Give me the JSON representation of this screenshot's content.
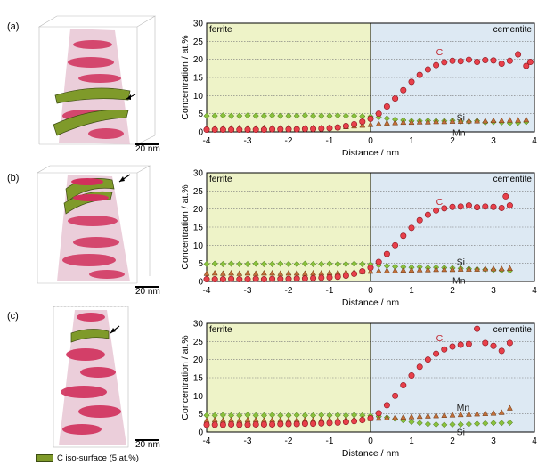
{
  "panels": [
    {
      "label": "(a)",
      "scale": "20 nm"
    },
    {
      "label": "(b)",
      "scale": "20 nm"
    },
    {
      "label": "(c)",
      "scale": "20 nm"
    }
  ],
  "legend": {
    "label": "C iso-surface (5 at.%)",
    "color": "#7f9a2a"
  },
  "colors": {
    "ferrite_bg": "#eef3c8",
    "cementite_bg": "#dde9f3",
    "C": "#e8404a",
    "Si": "#8ac23c",
    "Mn": "#c2703a"
  },
  "chart_data": [
    {
      "type": "scatter",
      "xlabel": "Distance / nm",
      "ylabel": "Concentration / at.%",
      "xlim": [
        -4,
        4
      ],
      "ylim": [
        0,
        30
      ],
      "xticks": [
        -4,
        -3,
        -2,
        -1,
        0,
        1,
        2,
        3,
        4
      ],
      "yticks": [
        0,
        5,
        10,
        15,
        20,
        25,
        30
      ],
      "region_left": "ferrite",
      "region_right": "cementite",
      "series": [
        {
          "name": "C",
          "x": [
            -4.0,
            -3.8,
            -3.6,
            -3.4,
            -3.2,
            -3.0,
            -2.8,
            -2.6,
            -2.4,
            -2.2,
            -2.0,
            -1.8,
            -1.6,
            -1.4,
            -1.2,
            -1.0,
            -0.8,
            -0.6,
            -0.4,
            -0.2,
            0.0,
            0.2,
            0.4,
            0.6,
            0.8,
            1.0,
            1.2,
            1.4,
            1.6,
            1.8,
            2.0,
            2.2,
            2.4,
            2.6,
            2.8,
            3.0,
            3.2,
            3.4,
            3.6,
            3.8,
            3.9
          ],
          "values": [
            0.6,
            0.6,
            0.6,
            0.6,
            0.6,
            0.6,
            0.6,
            0.6,
            0.7,
            0.7,
            0.7,
            0.7,
            0.8,
            0.8,
            0.9,
            1.0,
            1.2,
            1.6,
            2.1,
            2.8,
            3.6,
            5.0,
            7.0,
            9.2,
            11.5,
            13.8,
            15.7,
            17.2,
            18.4,
            19.2,
            19.6,
            19.5,
            19.9,
            19.3,
            19.8,
            19.7,
            18.8,
            19.6,
            21.4,
            18.2,
            19.3
          ],
          "label_at": [
            1.6,
            22
          ]
        },
        {
          "name": "Si",
          "x": [
            -4.0,
            -3.8,
            -3.6,
            -3.4,
            -3.2,
            -3.0,
            -2.8,
            -2.6,
            -2.4,
            -2.2,
            -2.0,
            -1.8,
            -1.6,
            -1.4,
            -1.2,
            -1.0,
            -0.8,
            -0.6,
            -0.4,
            -0.2,
            0.0,
            0.2,
            0.4,
            0.6,
            0.8,
            1.0,
            1.2,
            1.4,
            1.6,
            1.8,
            2.0,
            2.2,
            2.4,
            2.6,
            2.8,
            3.0,
            3.2,
            3.4,
            3.6,
            3.8
          ],
          "values": [
            4.4,
            4.4,
            4.5,
            4.4,
            4.4,
            4.5,
            4.4,
            4.4,
            4.5,
            4.4,
            4.4,
            4.4,
            4.5,
            4.4,
            4.4,
            4.4,
            4.5,
            4.4,
            4.4,
            4.3,
            4.2,
            4.0,
            3.7,
            3.4,
            3.2,
            3.0,
            3.0,
            3.1,
            3.0,
            3.0,
            3.1,
            2.9,
            2.8,
            3.0,
            2.6,
            2.7,
            2.6,
            2.4,
            2.5,
            2.7
          ],
          "label_at": [
            2.1,
            3.9
          ]
        },
        {
          "name": "Mn",
          "x": [
            -4.0,
            -3.8,
            -3.6,
            -3.4,
            -3.2,
            -3.0,
            -2.8,
            -2.6,
            -2.4,
            -2.2,
            -2.0,
            -1.8,
            -1.6,
            -1.4,
            -1.2,
            -1.0,
            -0.8,
            -0.6,
            -0.4,
            -0.2,
            0.0,
            0.2,
            0.4,
            0.6,
            0.8,
            1.0,
            1.2,
            1.4,
            1.6,
            1.8,
            2.0,
            2.2,
            2.4,
            2.6,
            2.8,
            3.0,
            3.2,
            3.4,
            3.6,
            3.8
          ],
          "values": [
            1.0,
            1.0,
            1.0,
            1.0,
            1.1,
            1.0,
            1.0,
            1.1,
            1.0,
            1.0,
            1.1,
            1.0,
            1.0,
            1.1,
            1.1,
            1.2,
            1.3,
            1.4,
            1.6,
            1.8,
            2.0,
            2.2,
            2.4,
            2.5,
            2.6,
            2.6,
            2.7,
            2.7,
            2.8,
            2.8,
            2.9,
            2.9,
            3.0,
            3.0,
            3.0,
            3.1,
            3.1,
            3.2,
            3.2,
            3.3
          ],
          "label_at": [
            2.0,
            -0.2
          ]
        }
      ]
    },
    {
      "type": "scatter",
      "xlabel": "Distance / nm",
      "ylabel": "Concentration / at.%",
      "xlim": [
        -4,
        4
      ],
      "ylim": [
        0,
        30
      ],
      "xticks": [
        -4,
        -3,
        -2,
        -1,
        0,
        1,
        2,
        3,
        4
      ],
      "yticks": [
        0,
        5,
        10,
        15,
        20,
        25,
        30
      ],
      "region_left": "ferrite",
      "region_right": "cementite",
      "series": [
        {
          "name": "C",
          "x": [
            -4.0,
            -3.8,
            -3.6,
            -3.4,
            -3.2,
            -3.0,
            -2.8,
            -2.6,
            -2.4,
            -2.2,
            -2.0,
            -1.8,
            -1.6,
            -1.4,
            -1.2,
            -1.0,
            -0.8,
            -0.6,
            -0.4,
            -0.2,
            0.0,
            0.2,
            0.4,
            0.6,
            0.8,
            1.0,
            1.2,
            1.4,
            1.6,
            1.8,
            2.0,
            2.2,
            2.4,
            2.6,
            2.8,
            3.0,
            3.2,
            3.3,
            3.4
          ],
          "values": [
            0.6,
            0.6,
            0.6,
            0.7,
            0.6,
            0.6,
            0.7,
            0.6,
            0.7,
            0.7,
            0.7,
            0.8,
            0.8,
            0.9,
            1.0,
            1.1,
            1.3,
            1.6,
            2.1,
            2.8,
            3.8,
            5.4,
            7.6,
            10.0,
            12.6,
            14.8,
            16.9,
            18.4,
            19.6,
            20.2,
            20.6,
            20.7,
            21.0,
            20.5,
            20.7,
            20.6,
            20.3,
            23.5,
            21.0
          ],
          "label_at": [
            1.6,
            22
          ]
        },
        {
          "name": "Si",
          "x": [
            -4.0,
            -3.8,
            -3.6,
            -3.4,
            -3.2,
            -3.0,
            -2.8,
            -2.6,
            -2.4,
            -2.2,
            -2.0,
            -1.8,
            -1.6,
            -1.4,
            -1.2,
            -1.0,
            -0.8,
            -0.6,
            -0.4,
            -0.2,
            0.0,
            0.2,
            0.4,
            0.6,
            0.8,
            1.0,
            1.2,
            1.4,
            1.6,
            1.8,
            2.0,
            2.2,
            2.4,
            2.6,
            2.8,
            3.0,
            3.2,
            3.4
          ],
          "values": [
            4.8,
            4.9,
            4.8,
            4.9,
            4.8,
            4.8,
            4.9,
            4.8,
            4.8,
            4.9,
            4.8,
            4.8,
            4.9,
            4.8,
            4.8,
            4.9,
            4.8,
            4.8,
            4.9,
            4.8,
            4.7,
            4.5,
            4.3,
            4.1,
            4.0,
            3.9,
            4.0,
            3.8,
            3.9,
            3.8,
            3.7,
            3.6,
            3.5,
            3.4,
            3.3,
            3.2,
            3.1,
            3.0
          ],
          "label_at": [
            2.1,
            5.4
          ]
        },
        {
          "name": "Mn",
          "x": [
            -4.0,
            -3.8,
            -3.6,
            -3.4,
            -3.2,
            -3.0,
            -2.8,
            -2.6,
            -2.4,
            -2.2,
            -2.0,
            -1.8,
            -1.6,
            -1.4,
            -1.2,
            -1.0,
            -0.8,
            -0.6,
            -0.4,
            -0.2,
            0.0,
            0.2,
            0.4,
            0.6,
            0.8,
            1.0,
            1.2,
            1.4,
            1.6,
            1.8,
            2.0,
            2.2,
            2.4,
            2.6,
            2.8,
            3.0,
            3.2,
            3.4
          ],
          "values": [
            2.2,
            2.3,
            2.2,
            2.3,
            2.2,
            2.3,
            2.2,
            2.3,
            2.3,
            2.2,
            2.3,
            2.3,
            2.2,
            2.3,
            2.3,
            2.4,
            2.4,
            2.5,
            2.6,
            2.7,
            2.8,
            2.9,
            3.0,
            3.0,
            3.1,
            3.1,
            3.2,
            3.2,
            3.3,
            3.3,
            3.3,
            3.4,
            3.4,
            3.4,
            3.5,
            3.5,
            3.5,
            3.6
          ],
          "label_at": [
            2.0,
            0.2
          ]
        }
      ]
    },
    {
      "type": "scatter",
      "xlabel": "Distance / nm",
      "ylabel": "Concentration / at.%",
      "xlim": [
        -4,
        4
      ],
      "ylim": [
        0,
        30
      ],
      "xticks": [
        -4,
        -3,
        -2,
        -1,
        0,
        1,
        2,
        3,
        4
      ],
      "yticks": [
        0,
        5,
        10,
        15,
        20,
        25,
        30
      ],
      "region_left": "ferrite",
      "region_right": "cementite",
      "series": [
        {
          "name": "C",
          "x": [
            -4.0,
            -3.8,
            -3.6,
            -3.4,
            -3.2,
            -3.0,
            -2.8,
            -2.6,
            -2.4,
            -2.2,
            -2.0,
            -1.8,
            -1.6,
            -1.4,
            -1.2,
            -1.0,
            -0.8,
            -0.6,
            -0.4,
            -0.2,
            0.0,
            0.2,
            0.4,
            0.6,
            0.8,
            1.0,
            1.2,
            1.4,
            1.6,
            1.8,
            2.0,
            2.2,
            2.4,
            2.6,
            2.8,
            3.0,
            3.2,
            3.4
          ],
          "values": [
            2.0,
            2.0,
            2.0,
            2.1,
            2.0,
            2.0,
            2.1,
            2.1,
            2.1,
            2.2,
            2.2,
            2.2,
            2.3,
            2.3,
            2.4,
            2.5,
            2.6,
            2.8,
            3.0,
            3.3,
            3.8,
            5.2,
            7.4,
            10.0,
            12.9,
            15.6,
            18.0,
            20.0,
            21.6,
            22.8,
            23.6,
            24.1,
            24.3,
            28.5,
            24.6,
            23.8,
            22.4,
            24.6
          ],
          "label_at": [
            1.6,
            26
          ]
        },
        {
          "name": "Si",
          "x": [
            -4.0,
            -3.8,
            -3.6,
            -3.4,
            -3.2,
            -3.0,
            -2.8,
            -2.6,
            -2.4,
            -2.2,
            -2.0,
            -1.8,
            -1.6,
            -1.4,
            -1.2,
            -1.0,
            -0.8,
            -0.6,
            -0.4,
            -0.2,
            0.0,
            0.2,
            0.4,
            0.6,
            0.8,
            1.0,
            1.2,
            1.4,
            1.6,
            1.8,
            2.0,
            2.2,
            2.4,
            2.6,
            2.8,
            3.0,
            3.2,
            3.4
          ],
          "values": [
            4.6,
            4.6,
            4.7,
            4.6,
            4.6,
            4.7,
            4.6,
            4.6,
            4.7,
            4.6,
            4.6,
            4.7,
            4.6,
            4.6,
            4.7,
            4.6,
            4.7,
            4.6,
            4.7,
            4.6,
            4.5,
            4.3,
            4.0,
            3.6,
            3.2,
            2.8,
            2.5,
            2.2,
            2.1,
            2.0,
            2.1,
            2.1,
            2.2,
            2.3,
            2.4,
            2.5,
            2.5,
            2.6
          ],
          "label_at": [
            2.1,
            0.0
          ]
        },
        {
          "name": "Mn",
          "x": [
            -4.0,
            -3.8,
            -3.6,
            -3.4,
            -3.2,
            -3.0,
            -2.8,
            -2.6,
            -2.4,
            -2.2,
            -2.0,
            -1.8,
            -1.6,
            -1.4,
            -1.2,
            -1.0,
            -0.8,
            -0.6,
            -0.4,
            -0.2,
            0.0,
            0.2,
            0.4,
            0.6,
            0.8,
            1.0,
            1.2,
            1.4,
            1.6,
            1.8,
            2.0,
            2.2,
            2.4,
            2.6,
            2.8,
            3.0,
            3.2,
            3.4
          ],
          "values": [
            3.2,
            3.3,
            3.2,
            3.3,
            3.2,
            3.3,
            3.3,
            3.2,
            3.3,
            3.3,
            3.2,
            3.3,
            3.3,
            3.3,
            3.4,
            3.4,
            3.4,
            3.5,
            3.5,
            3.6,
            3.7,
            3.8,
            3.9,
            4.0,
            4.1,
            4.2,
            4.3,
            4.4,
            4.5,
            4.6,
            4.7,
            4.8,
            4.9,
            5.0,
            5.1,
            5.2,
            5.4,
            6.6
          ],
          "label_at": [
            2.1,
            6.8
          ]
        }
      ]
    }
  ]
}
